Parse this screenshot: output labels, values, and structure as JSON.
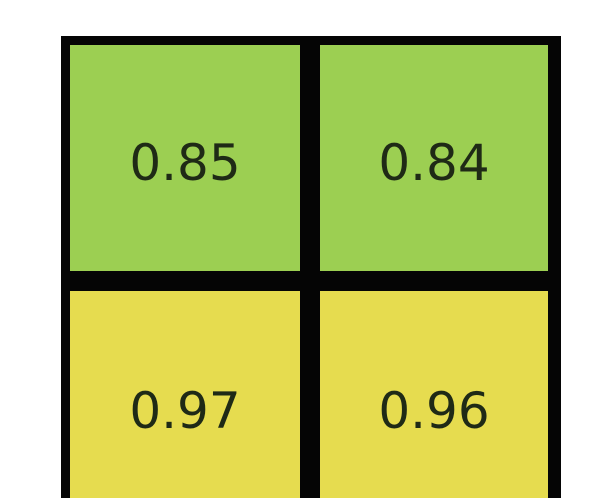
{
  "chart_data": {
    "type": "heatmap",
    "rows": [
      {
        "cells": [
          {
            "value": "0.85",
            "color": "#9ccf52"
          },
          {
            "value": "0.84",
            "color": "#9ccf52"
          }
        ]
      },
      {
        "cells": [
          {
            "value": "0.97",
            "color": "#e6dc4f"
          },
          {
            "value": "0.96",
            "color": "#e6dc4f"
          }
        ]
      }
    ],
    "colors": {
      "border": "#050505",
      "background": "#ffffff",
      "label_text": "#1f2a16"
    }
  }
}
